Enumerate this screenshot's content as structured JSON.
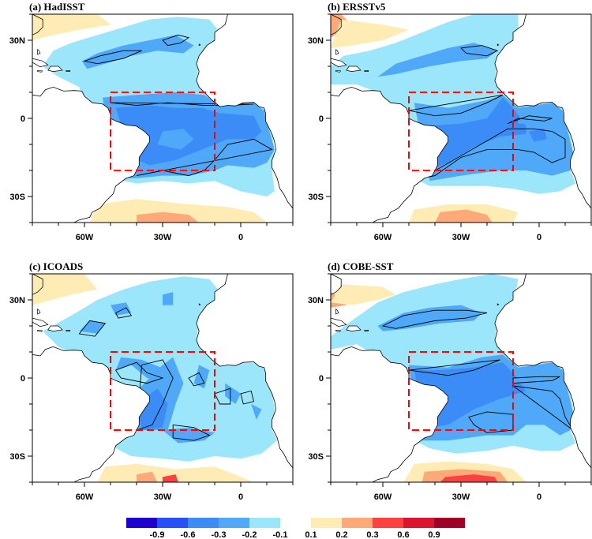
{
  "chart_data": {
    "type": "heatmap",
    "title": "",
    "projection": "lat-lon map, tropical Atlantic",
    "lon_range": [
      -80,
      20
    ],
    "lat_range": [
      -40,
      40
    ],
    "x_ticks": [
      {
        "value": -60,
        "label": "60W"
      },
      {
        "value": -30,
        "label": "30W"
      },
      {
        "value": 0,
        "label": "0"
      }
    ],
    "x_minor_ticks": [
      -80,
      -70,
      -60,
      -50,
      -40,
      -30,
      -20,
      -10,
      0,
      10,
      20
    ],
    "y_ticks": [
      {
        "value": 30,
        "label": "30N"
      },
      {
        "value": 0,
        "label": "0"
      },
      {
        "value": -30,
        "label": "30S"
      }
    ],
    "y_minor_ticks": [
      40,
      30,
      20,
      10,
      0,
      -10,
      -20,
      -30,
      -40
    ],
    "region_box": {
      "lon": [
        -50,
        -10
      ],
      "lat": [
        -20,
        10
      ],
      "color": "#ff0000",
      "style": "dashed"
    },
    "panels": [
      {
        "id": "a",
        "title": "(a) HadISST"
      },
      {
        "id": "b",
        "title": "(b) ERSSTv5"
      },
      {
        "id": "c",
        "title": "(c) ICOADS"
      },
      {
        "id": "d",
        "title": "(d) COBE-SST"
      }
    ],
    "colorbar": {
      "levels": [
        {
          "label": "-0.9",
          "color": "#1e00d0"
        },
        {
          "label": "-0.6",
          "color": "#2850f8"
        },
        {
          "label": "-0.3",
          "color": "#3c8cf8"
        },
        {
          "label": "-0.2",
          "color": "#50a8f8"
        },
        {
          "label": "-0.1",
          "color": "#9ce6fc"
        },
        {
          "label": "0.1",
          "color": "#ffffff"
        },
        {
          "label": "0.2",
          "color": "#ffebb4"
        },
        {
          "label": "0.3",
          "color": "#ffa878"
        },
        {
          "label": "0.6",
          "color": "#ff4040"
        },
        {
          "label": "0.9",
          "color": "#dc1432"
        },
        {
          "label": "",
          "color": "#a00028"
        }
      ]
    }
  }
}
